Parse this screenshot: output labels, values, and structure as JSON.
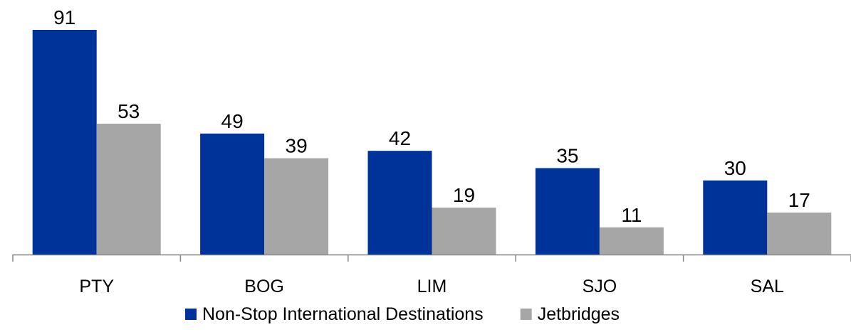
{
  "chart_data": {
    "type": "bar",
    "title": "",
    "xlabel": "",
    "ylabel": "",
    "categories": [
      "PTY",
      "BOG",
      "LIM",
      "SJO",
      "SAL"
    ],
    "series": [
      {
        "name": "Non-Stop International Destinations",
        "values": [
          91,
          49,
          42,
          35,
          30
        ],
        "color": "#003399"
      },
      {
        "name": "Jetbridges",
        "values": [
          53,
          39,
          19,
          11,
          17
        ],
        "color": "#a6a6a6"
      }
    ],
    "ylim": [
      0,
      91
    ],
    "grid": false,
    "legend_position": "bottom",
    "data_labels": true
  }
}
